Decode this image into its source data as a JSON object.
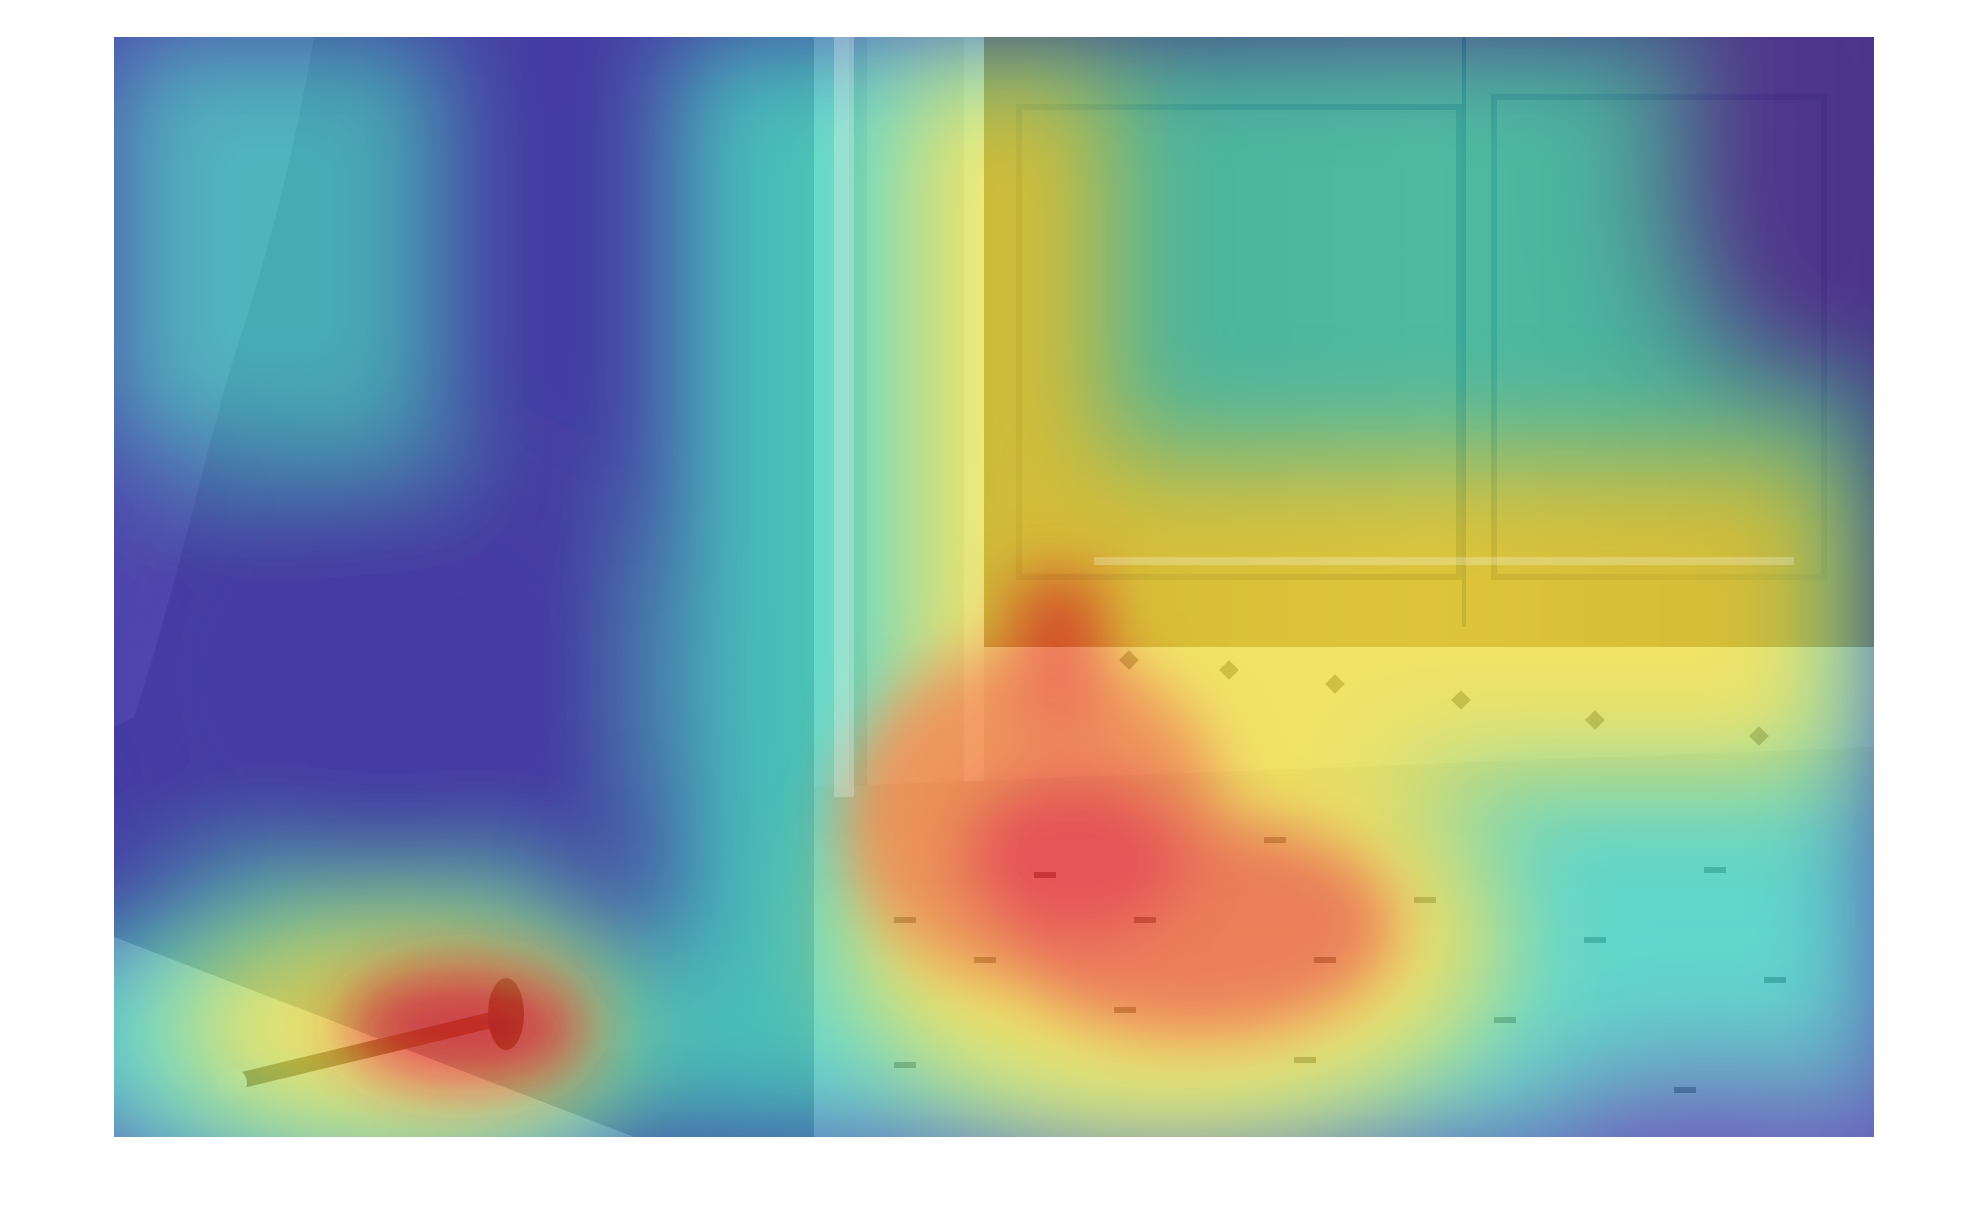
{
  "figure": {
    "kind": "attention-heatmap-overlay",
    "colormap": "jet",
    "colors": {
      "page_background": "#ffffff",
      "wall": "#8d8f96",
      "cabinet_wood": "#a9783d",
      "floor_tile": "#ece6dc",
      "heat_low": "#2a1aa8",
      "heat_mid": "#2fd3c8",
      "heat_high_yellow": "#f2e23a",
      "heat_peak": "#e8242a"
    },
    "scene_objects": [
      "curtain",
      "door-frame",
      "wood-cabinet",
      "tile-floor",
      "door-stopper"
    ]
  }
}
